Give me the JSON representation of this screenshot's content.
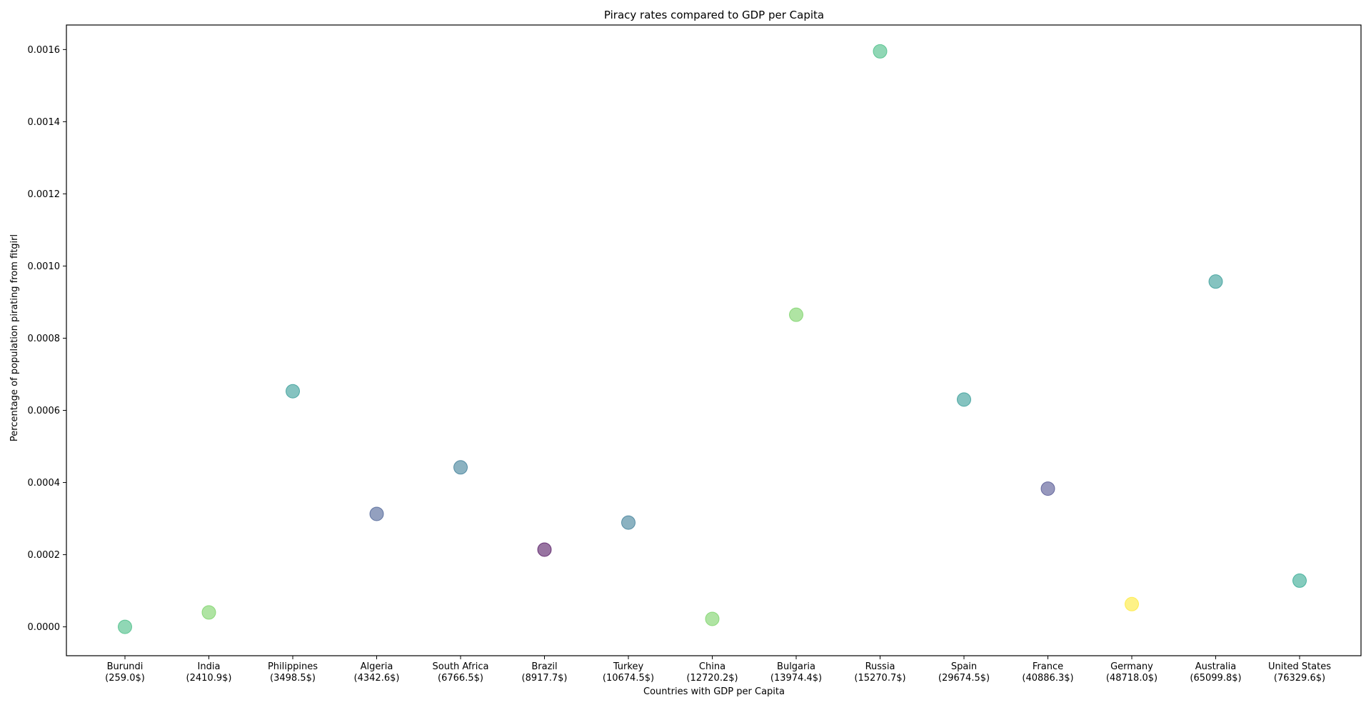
{
  "chart_data": {
    "type": "scatter",
    "title": "Piracy rates compared to GDP per Capita",
    "xlabel": "Countries with GDP per Capita",
    "ylabel": "Percentage of population pirating from fitgirl",
    "ylim": [
      -8e-05,
      0.001668
    ],
    "y_ticks": [
      "0.0000",
      "0.0002",
      "0.0004",
      "0.0006",
      "0.0008",
      "0.0010",
      "0.0012",
      "0.0014",
      "0.0016"
    ],
    "grid": false,
    "points": [
      {
        "country": "Burundi",
        "gdp_label": "(259.0$)",
        "y": 0.0,
        "color": "#35b779"
      },
      {
        "country": "India",
        "gdp_label": "(2410.9$)",
        "y": 4e-05,
        "color": "#6ece58"
      },
      {
        "country": "Philippines",
        "gdp_label": "(3498.5$)",
        "y": 0.000653,
        "color": "#21918c"
      },
      {
        "country": "Algeria",
        "gdp_label": "(4342.6$)",
        "y": 0.000313,
        "color": "#3b528b"
      },
      {
        "country": "South Africa",
        "gdp_label": "(6766.5$)",
        "y": 0.000442,
        "color": "#2c728e"
      },
      {
        "country": "Brazil",
        "gdp_label": "(8917.7$)",
        "y": 0.000214,
        "color": "#440154"
      },
      {
        "country": "Turkey",
        "gdp_label": "(10674.5$)",
        "y": 0.000289,
        "color": "#2c728e"
      },
      {
        "country": "China",
        "gdp_label": "(12720.2$)",
        "y": 2.2e-05,
        "color": "#6ece58"
      },
      {
        "country": "Bulgaria",
        "gdp_label": "(13974.4$)",
        "y": 0.000865,
        "color": "#6ece58"
      },
      {
        "country": "Russia",
        "gdp_label": "(15270.7$)",
        "y": 0.001595,
        "color": "#35b779"
      },
      {
        "country": "Spain",
        "gdp_label": "(29674.5$)",
        "y": 0.00063,
        "color": "#21918c"
      },
      {
        "country": "France",
        "gdp_label": "(40886.3$)",
        "y": 0.000383,
        "color": "#414487"
      },
      {
        "country": "Germany",
        "gdp_label": "(48718.0$)",
        "y": 6.3e-05,
        "color": "#fde725"
      },
      {
        "country": "Australia",
        "gdp_label": "(65099.8$)",
        "y": 0.000957,
        "color": "#21918c"
      },
      {
        "country": "United States",
        "gdp_label": "(76329.6$)",
        "y": 0.000128,
        "color": "#1fa187"
      }
    ]
  }
}
